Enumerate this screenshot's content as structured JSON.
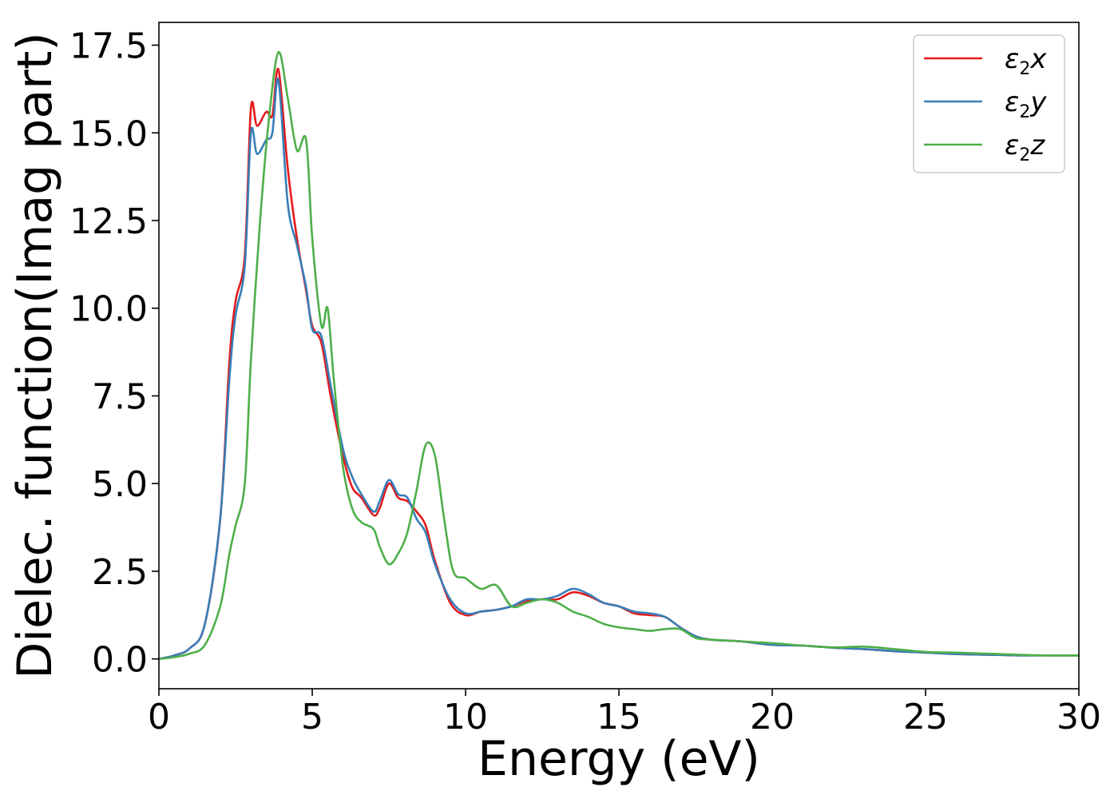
{
  "chart_data": {
    "type": "line",
    "xlabel": "Energy (eV)",
    "ylabel": "Dielec. function(Imag part)",
    "xlim": [
      0,
      30
    ],
    "ylim": [
      -0.85,
      18.15
    ],
    "xticks": [
      0,
      5,
      10,
      15,
      20,
      25,
      30
    ],
    "xtick_labels": [
      "0",
      "5",
      "10",
      "15",
      "20",
      "25",
      "30"
    ],
    "yticks": [
      0.0,
      2.5,
      5.0,
      7.5,
      10.0,
      12.5,
      15.0,
      17.5
    ],
    "ytick_labels": [
      "0.0",
      "2.5",
      "5.0",
      "7.5",
      "10.0",
      "12.5",
      "15.0",
      "17.5"
    ],
    "grid": false,
    "legend_position": "top-right",
    "series": [
      {
        "name": "ε2x",
        "label_base": "ε",
        "label_sub": "2",
        "label_tail": "x",
        "color": "#e41a1c",
        "points": [
          [
            0,
            0
          ],
          [
            0.5,
            0.1
          ],
          [
            1.0,
            0.3
          ],
          [
            1.5,
            1.0
          ],
          [
            2.0,
            4.0
          ],
          [
            2.3,
            8.5
          ],
          [
            2.5,
            10.2
          ],
          [
            2.8,
            11.5
          ],
          [
            3.0,
            15.7
          ],
          [
            3.2,
            15.2
          ],
          [
            3.5,
            15.6
          ],
          [
            3.7,
            15.5
          ],
          [
            3.9,
            16.8
          ],
          [
            4.2,
            14.0
          ],
          [
            4.5,
            12.0
          ],
          [
            4.8,
            10.5
          ],
          [
            5.0,
            9.5
          ],
          [
            5.3,
            9.0
          ],
          [
            5.6,
            7.5
          ],
          [
            6.0,
            5.8
          ],
          [
            6.3,
            4.9
          ],
          [
            6.6,
            4.6
          ],
          [
            7.0,
            4.1
          ],
          [
            7.2,
            4.3
          ],
          [
            7.5,
            5.0
          ],
          [
            7.8,
            4.6
          ],
          [
            8.1,
            4.5
          ],
          [
            8.4,
            4.2
          ],
          [
            8.7,
            3.8
          ],
          [
            9.0,
            2.8
          ],
          [
            9.5,
            1.6
          ],
          [
            10.0,
            1.25
          ],
          [
            10.5,
            1.35
          ],
          [
            11.0,
            1.4
          ],
          [
            11.5,
            1.5
          ],
          [
            12.0,
            1.65
          ],
          [
            12.5,
            1.7
          ],
          [
            13.0,
            1.7
          ],
          [
            13.5,
            1.9
          ],
          [
            14.0,
            1.8
          ],
          [
            14.5,
            1.6
          ],
          [
            15.0,
            1.5
          ],
          [
            15.5,
            1.3
          ],
          [
            16.0,
            1.25
          ],
          [
            16.5,
            1.2
          ],
          [
            17.0,
            0.9
          ],
          [
            17.5,
            0.65
          ],
          [
            18.0,
            0.55
          ],
          [
            19.0,
            0.5
          ],
          [
            20.0,
            0.4
          ],
          [
            21.0,
            0.38
          ],
          [
            22.0,
            0.32
          ],
          [
            23.0,
            0.28
          ],
          [
            24.0,
            0.22
          ],
          [
            25.0,
            0.18
          ],
          [
            26.0,
            0.14
          ],
          [
            27.0,
            0.12
          ],
          [
            28.0,
            0.1
          ],
          [
            29.0,
            0.1
          ],
          [
            30.0,
            0.1
          ]
        ]
      },
      {
        "name": "ε2y",
        "label_base": "ε",
        "label_sub": "2",
        "label_tail": "y",
        "color": "#377eb8",
        "points": [
          [
            0,
            0
          ],
          [
            0.5,
            0.1
          ],
          [
            1.0,
            0.3
          ],
          [
            1.5,
            1.0
          ],
          [
            2.0,
            4.0
          ],
          [
            2.3,
            8.0
          ],
          [
            2.5,
            9.8
          ],
          [
            2.8,
            11.2
          ],
          [
            3.0,
            15.0
          ],
          [
            3.2,
            14.4
          ],
          [
            3.5,
            14.8
          ],
          [
            3.7,
            15.0
          ],
          [
            3.9,
            16.5
          ],
          [
            4.2,
            13.0
          ],
          [
            4.5,
            11.8
          ],
          [
            4.8,
            10.6
          ],
          [
            5.0,
            9.4
          ],
          [
            5.3,
            9.2
          ],
          [
            5.6,
            7.8
          ],
          [
            6.0,
            6.0
          ],
          [
            6.3,
            5.2
          ],
          [
            6.6,
            4.7
          ],
          [
            7.0,
            4.2
          ],
          [
            7.2,
            4.5
          ],
          [
            7.5,
            5.1
          ],
          [
            7.8,
            4.7
          ],
          [
            8.1,
            4.6
          ],
          [
            8.4,
            4.0
          ],
          [
            8.7,
            3.6
          ],
          [
            9.0,
            2.7
          ],
          [
            9.5,
            1.7
          ],
          [
            10.0,
            1.3
          ],
          [
            10.5,
            1.35
          ],
          [
            11.0,
            1.4
          ],
          [
            11.5,
            1.5
          ],
          [
            12.0,
            1.7
          ],
          [
            12.5,
            1.7
          ],
          [
            13.0,
            1.8
          ],
          [
            13.5,
            2.0
          ],
          [
            14.0,
            1.85
          ],
          [
            14.5,
            1.6
          ],
          [
            15.0,
            1.5
          ],
          [
            15.5,
            1.35
          ],
          [
            16.0,
            1.3
          ],
          [
            16.5,
            1.2
          ],
          [
            17.0,
            0.9
          ],
          [
            17.5,
            0.65
          ],
          [
            18.0,
            0.55
          ],
          [
            19.0,
            0.5
          ],
          [
            20.0,
            0.4
          ],
          [
            21.0,
            0.38
          ],
          [
            22.0,
            0.32
          ],
          [
            23.0,
            0.28
          ],
          [
            24.0,
            0.22
          ],
          [
            25.0,
            0.18
          ],
          [
            26.0,
            0.14
          ],
          [
            27.0,
            0.12
          ],
          [
            28.0,
            0.1
          ],
          [
            29.0,
            0.1
          ],
          [
            30.0,
            0.1
          ]
        ]
      },
      {
        "name": "ε2z",
        "label_base": "ε",
        "label_sub": "2",
        "label_tail": "z",
        "color": "#4daf4a",
        "points": [
          [
            0,
            0
          ],
          [
            0.5,
            0.05
          ],
          [
            1.0,
            0.15
          ],
          [
            1.5,
            0.4
          ],
          [
            2.0,
            1.5
          ],
          [
            2.3,
            3.0
          ],
          [
            2.5,
            3.8
          ],
          [
            2.8,
            5.0
          ],
          [
            3.0,
            8.5
          ],
          [
            3.3,
            12.5
          ],
          [
            3.6,
            15.5
          ],
          [
            3.9,
            17.3
          ],
          [
            4.2,
            16.0
          ],
          [
            4.5,
            14.5
          ],
          [
            4.8,
            14.8
          ],
          [
            5.0,
            12.0
          ],
          [
            5.3,
            9.5
          ],
          [
            5.5,
            10.0
          ],
          [
            5.7,
            8.0
          ],
          [
            6.0,
            5.5
          ],
          [
            6.3,
            4.3
          ],
          [
            6.6,
            3.9
          ],
          [
            7.0,
            3.7
          ],
          [
            7.2,
            3.2
          ],
          [
            7.5,
            2.7
          ],
          [
            7.8,
            3.0
          ],
          [
            8.1,
            3.6
          ],
          [
            8.4,
            4.8
          ],
          [
            8.7,
            6.1
          ],
          [
            9.0,
            5.8
          ],
          [
            9.3,
            4.0
          ],
          [
            9.6,
            2.5
          ],
          [
            10.0,
            2.3
          ],
          [
            10.5,
            2.0
          ],
          [
            11.0,
            2.1
          ],
          [
            11.5,
            1.5
          ],
          [
            12.0,
            1.6
          ],
          [
            12.5,
            1.7
          ],
          [
            13.0,
            1.6
          ],
          [
            13.5,
            1.35
          ],
          [
            14.0,
            1.2
          ],
          [
            14.5,
            1.0
          ],
          [
            15.0,
            0.9
          ],
          [
            15.5,
            0.85
          ],
          [
            16.0,
            0.8
          ],
          [
            16.5,
            0.85
          ],
          [
            17.0,
            0.85
          ],
          [
            17.5,
            0.6
          ],
          [
            18.0,
            0.55
          ],
          [
            19.0,
            0.5
          ],
          [
            20.0,
            0.45
          ],
          [
            21.0,
            0.38
          ],
          [
            22.0,
            0.33
          ],
          [
            23.0,
            0.35
          ],
          [
            24.0,
            0.28
          ],
          [
            25.0,
            0.2
          ],
          [
            26.0,
            0.18
          ],
          [
            27.0,
            0.15
          ],
          [
            28.0,
            0.12
          ],
          [
            29.0,
            0.1
          ],
          [
            30.0,
            0.1
          ]
        ]
      }
    ]
  }
}
